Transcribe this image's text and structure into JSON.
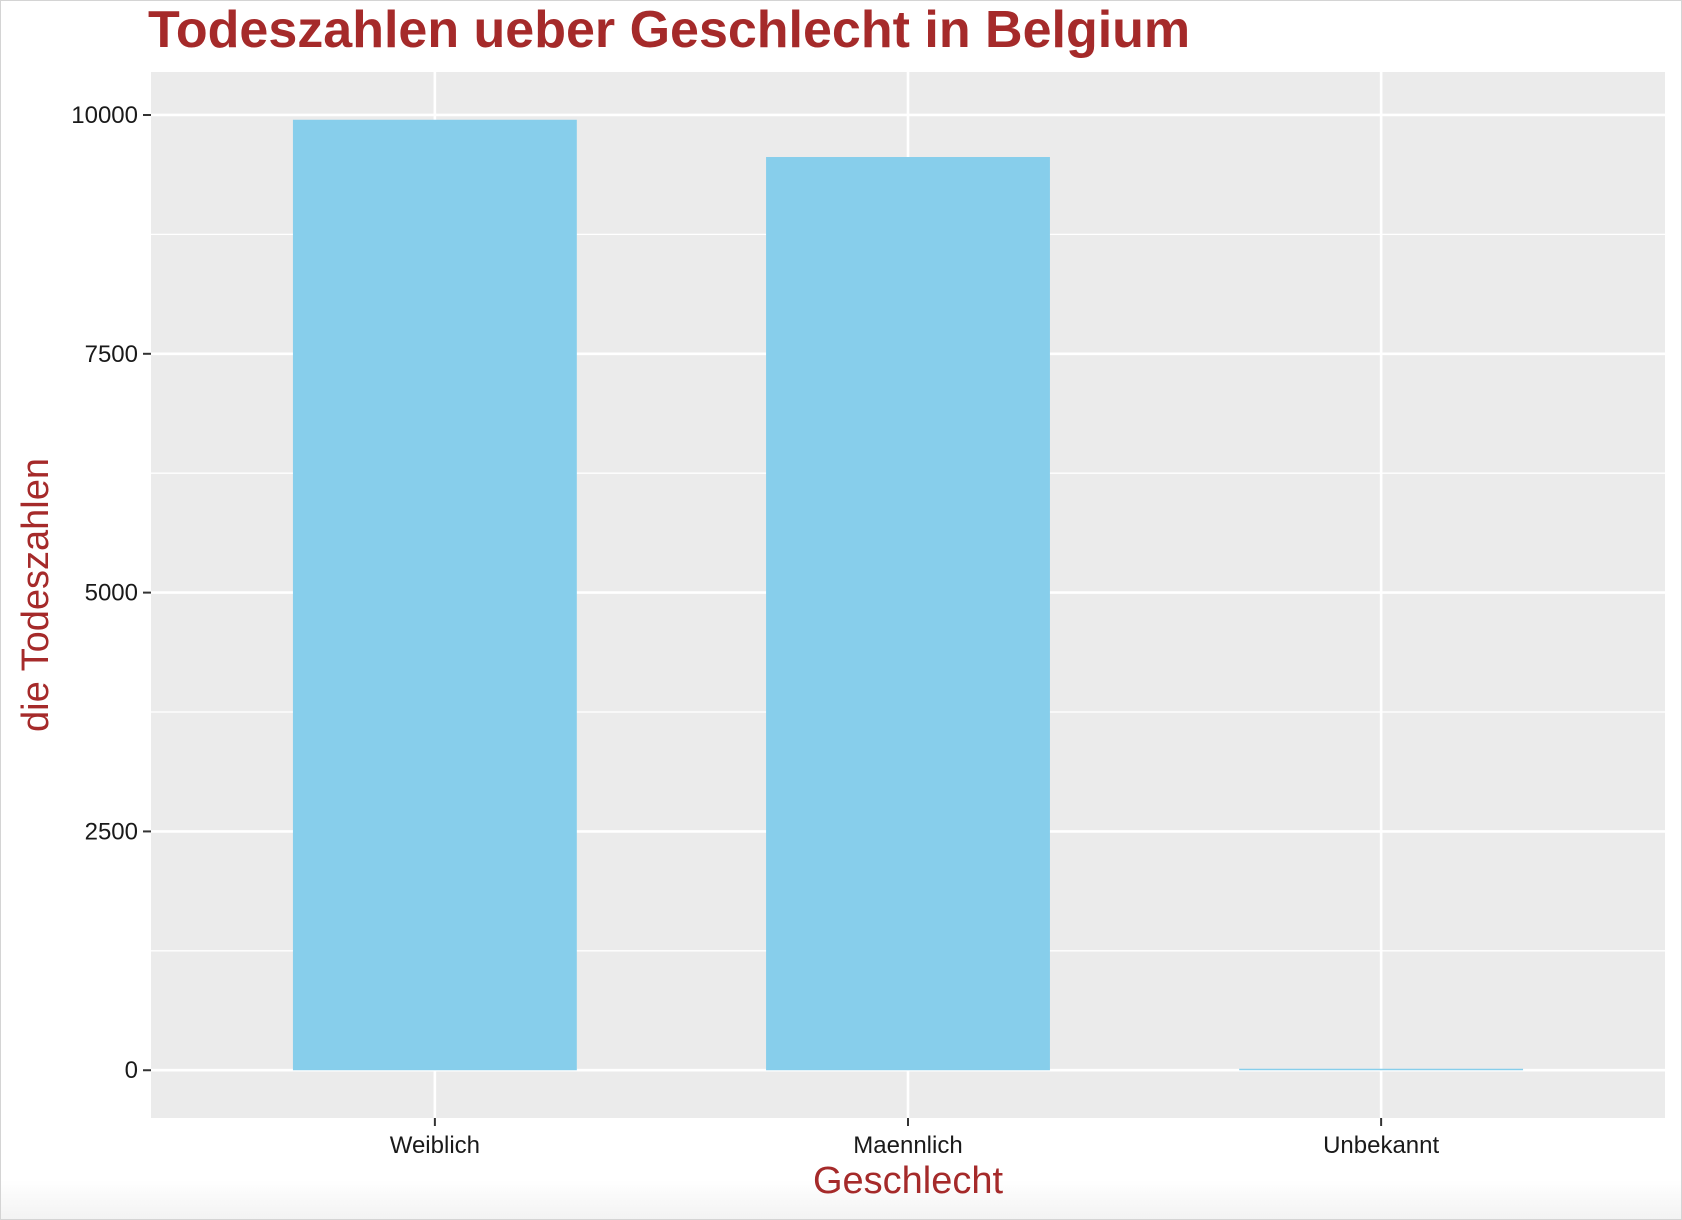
{
  "colors": {
    "accent": "#a52a2a",
    "bar_fill": "#87ceeb",
    "panel": "#ebebeb",
    "grid": "#ffffff",
    "tick_mark": "#333333"
  },
  "chart_data": {
    "type": "bar",
    "title": "Todeszahlen ueber Geschlecht in Belgium",
    "xlabel": "Geschlecht",
    "ylabel": "die Todeszahlen",
    "categories": [
      "Weiblich",
      "Maennlich",
      "Unbekannt"
    ],
    "values": [
      9950,
      9560,
      15
    ],
    "ylim": [
      -500,
      10450
    ],
    "yticks": [
      0,
      2500,
      5000,
      7500,
      10000
    ],
    "ytick_labels": [
      "0",
      "2500",
      "5000",
      "7500",
      "10000"
    ],
    "grid": true,
    "legend": "none"
  }
}
